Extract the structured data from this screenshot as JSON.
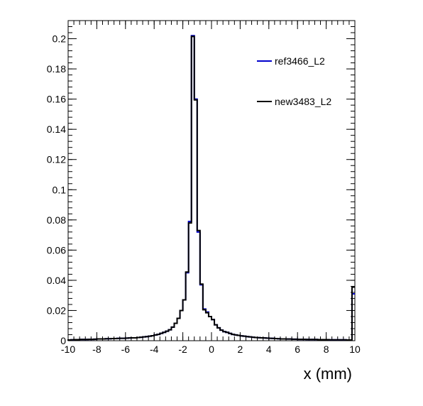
{
  "chart_data": {
    "type": "line",
    "title": "",
    "xlabel": "x (mm)",
    "ylabel": "",
    "xlim": [
      -10,
      10
    ],
    "ylim": [
      0,
      0.212
    ],
    "x_ticks": [
      -10,
      -8,
      -6,
      -4,
      -2,
      0,
      2,
      4,
      6,
      8,
      10
    ],
    "x_tick_labels": [
      "-10",
      "-8",
      "-6",
      "-4",
      "-2",
      "0",
      "2",
      "4",
      "6",
      "8",
      "10"
    ],
    "y_ticks": [
      0,
      0.02,
      0.04,
      0.06,
      0.08,
      0.1,
      0.12,
      0.14,
      0.16,
      0.18,
      0.2
    ],
    "y_tick_labels": [
      "0",
      "0.02",
      "0.04",
      "0.06",
      "0.08",
      "0.1",
      "0.12",
      "0.14",
      "0.16",
      "0.18",
      "0.2"
    ],
    "grid": false,
    "legend_position": "top-right",
    "bin_edges_range": [
      -10,
      10
    ],
    "bin_count": 100,
    "series": [
      {
        "name": "ref3466_L2",
        "color": "#0000cc",
        "values": [
          0.0005,
          0.0006,
          0.0007,
          0.0007,
          0.0008,
          0.0008,
          0.0008,
          0.0009,
          0.0009,
          0.001,
          0.0012,
          0.0012,
          0.0012,
          0.0013,
          0.0013,
          0.0014,
          0.0014,
          0.0015,
          0.0016,
          0.0016,
          0.0017,
          0.0018,
          0.0019,
          0.0019,
          0.0021,
          0.0023,
          0.0025,
          0.0027,
          0.003,
          0.0033,
          0.0038,
          0.0042,
          0.0049,
          0.0055,
          0.0063,
          0.0072,
          0.009,
          0.0115,
          0.0148,
          0.02,
          0.027,
          0.045,
          0.079,
          0.202,
          0.16,
          0.072,
          0.037,
          0.021,
          0.019,
          0.016,
          0.014,
          0.0105,
          0.0085,
          0.007,
          0.006,
          0.0055,
          0.0048,
          0.0042,
          0.0038,
          0.0035,
          0.0032,
          0.003,
          0.0027,
          0.0025,
          0.0023,
          0.0021,
          0.002,
          0.0019,
          0.0018,
          0.0017,
          0.0016,
          0.0015,
          0.0014,
          0.0013,
          0.0012,
          0.0012,
          0.0011,
          0.0011,
          0.001,
          0.001,
          0.0009,
          0.0009,
          0.0009,
          0.0008,
          0.0008,
          0.0008,
          0.0008,
          0.0007,
          0.0007,
          0.0007,
          0.0007,
          0.0006,
          0.0006,
          0.0006,
          0.0006,
          0.0006,
          0.0006,
          0.0005,
          0.0005,
          0.031
        ]
      },
      {
        "name": "new3483_L2",
        "color": "#000000",
        "values": [
          0.0005,
          0.0006,
          0.0007,
          0.0007,
          0.0008,
          0.0008,
          0.0008,
          0.0009,
          0.0009,
          0.001,
          0.0012,
          0.0012,
          0.0012,
          0.0013,
          0.0013,
          0.0014,
          0.0014,
          0.0015,
          0.0016,
          0.0016,
          0.0017,
          0.0018,
          0.0019,
          0.0019,
          0.0021,
          0.0023,
          0.0025,
          0.0027,
          0.003,
          0.0033,
          0.0038,
          0.0042,
          0.0049,
          0.0055,
          0.0063,
          0.0072,
          0.009,
          0.0115,
          0.0148,
          0.02,
          0.027,
          0.0455,
          0.078,
          0.2015,
          0.1595,
          0.073,
          0.0375,
          0.0205,
          0.0185,
          0.016,
          0.014,
          0.0105,
          0.0085,
          0.007,
          0.006,
          0.0055,
          0.0048,
          0.0042,
          0.0038,
          0.0035,
          0.0032,
          0.003,
          0.0027,
          0.0025,
          0.0023,
          0.0021,
          0.002,
          0.0019,
          0.0018,
          0.0017,
          0.0016,
          0.0015,
          0.0014,
          0.0013,
          0.0012,
          0.0012,
          0.0011,
          0.0011,
          0.001,
          0.001,
          0.0009,
          0.0009,
          0.0009,
          0.0008,
          0.0008,
          0.0008,
          0.0008,
          0.0007,
          0.0007,
          0.0007,
          0.0007,
          0.0006,
          0.0006,
          0.0006,
          0.0006,
          0.0006,
          0.0006,
          0.0005,
          0.0005,
          0.0355
        ]
      }
    ]
  }
}
